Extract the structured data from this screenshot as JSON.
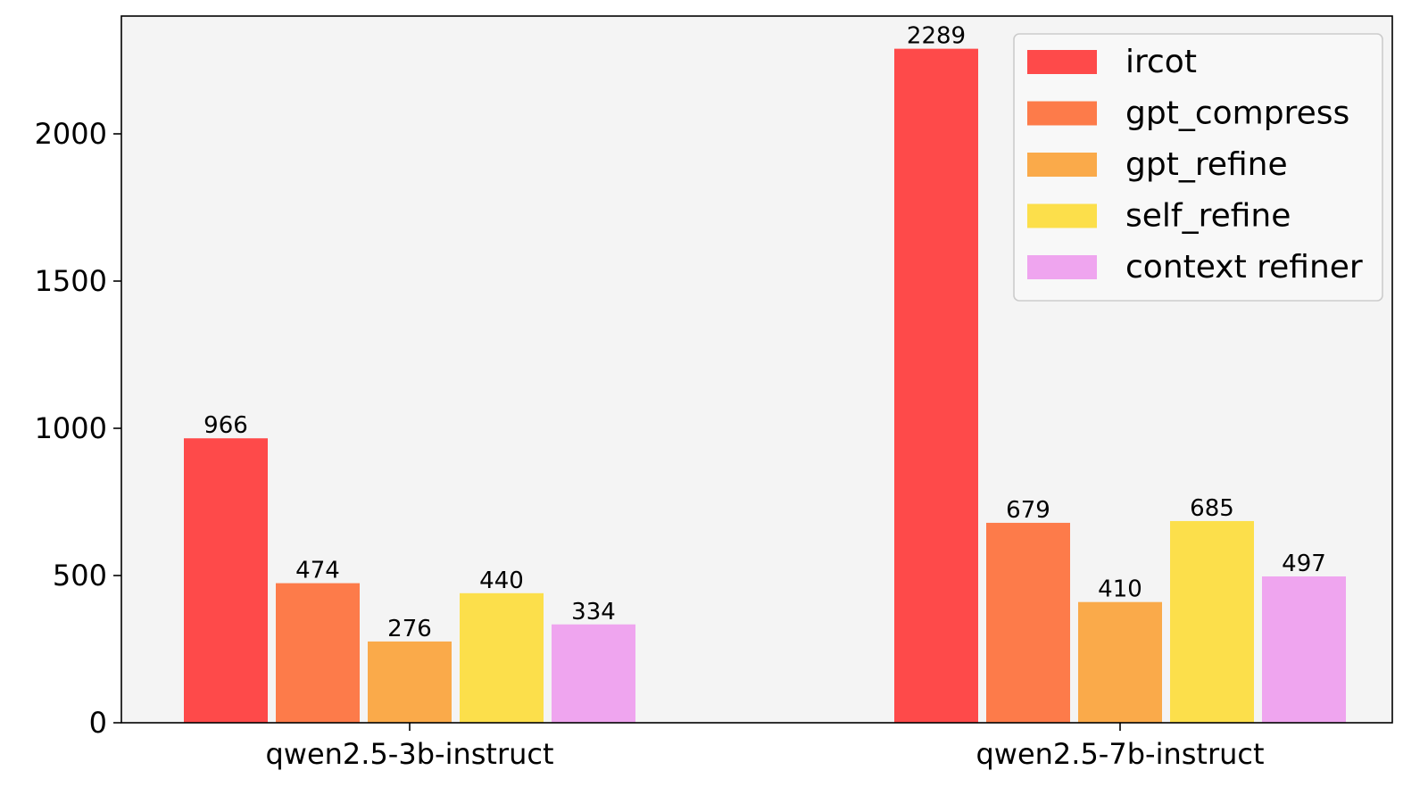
{
  "chart_data": {
    "type": "bar",
    "title": "",
    "xlabel": "",
    "ylabel": "",
    "ylim": [
      0,
      2400
    ],
    "yticks": [
      0,
      500,
      1000,
      1500,
      2000
    ],
    "grid": false,
    "legend_position": "top-right",
    "categories": [
      "qwen2.5-3b-instruct",
      "qwen2.5-7b-instruct"
    ],
    "series": [
      {
        "name": "ircot",
        "color": "#fe4a4a",
        "values": [
          966,
          2289
        ]
      },
      {
        "name": "gpt_compress",
        "color": "#fd7b4a",
        "values": [
          474,
          679
        ]
      },
      {
        "name": "gpt_refine",
        "color": "#faaa4a",
        "values": [
          276,
          410
        ]
      },
      {
        "name": "self_refine",
        "color": "#fcdf4b",
        "values": [
          440,
          685
        ]
      },
      {
        "name": "context refiner",
        "color": "#efa5ef",
        "values": [
          334,
          497
        ]
      }
    ],
    "plot_background": "#f4f4f4"
  }
}
